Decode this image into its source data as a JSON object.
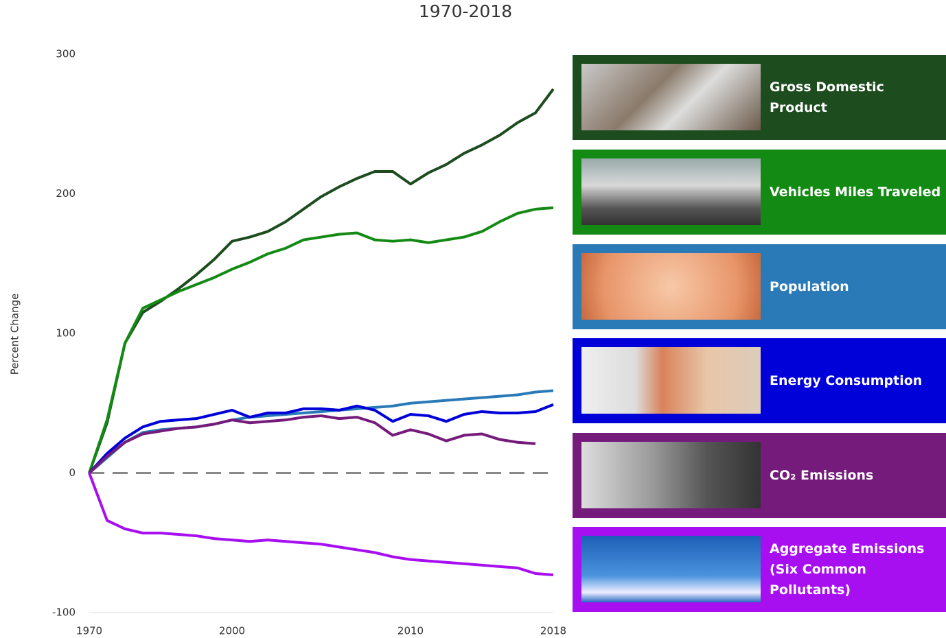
{
  "chart_data": {
    "type": "line",
    "title": "1970-2018",
    "y_label": "Percent Change",
    "categories": [
      "1970",
      null,
      null,
      null,
      null,
      null,
      null,
      null,
      "2000",
      null,
      null,
      null,
      null,
      null,
      null,
      null,
      null,
      null,
      "2010",
      null,
      null,
      null,
      null,
      null,
      null,
      null,
      "2018"
    ],
    "ylim": [
      -100,
      300
    ],
    "yticks": [
      -100,
      0,
      100,
      200,
      300
    ],
    "zero_line": true,
    "series": [
      {
        "name": "Gross Domestic Product",
        "color": "#1d4d1f",
        "values": [
          0,
          36,
          93,
          115,
          123,
          132,
          142,
          153,
          166,
          169,
          173,
          180,
          189,
          198,
          205,
          211,
          216,
          216,
          207,
          215,
          221,
          229,
          235,
          242,
          251,
          258,
          275
        ]
      },
      {
        "name": "Vehicles Miles Traveled",
        "color": "#138a14",
        "values": [
          0,
          38,
          93,
          118,
          124,
          130,
          135,
          140,
          146,
          151,
          157,
          161,
          167,
          169,
          171,
          172,
          167,
          166,
          167,
          165,
          167,
          169,
          173,
          180,
          186,
          189,
          190
        ]
      },
      {
        "name": "Population",
        "color": "#2a7ab8",
        "values": [
          0,
          11,
          22,
          29,
          31,
          32,
          33,
          35,
          38,
          40,
          41,
          42,
          43,
          44,
          45,
          46,
          47,
          48,
          50,
          51,
          52,
          53,
          54,
          55,
          56,
          58,
          59
        ]
      },
      {
        "name": "Energy Consumption",
        "color": "#0000d9",
        "values": [
          0,
          14,
          25,
          33,
          37,
          38,
          39,
          42,
          45,
          40,
          43,
          43,
          46,
          46,
          45,
          48,
          45,
          37,
          42,
          41,
          37,
          42,
          44,
          43,
          43,
          44,
          49
        ]
      },
      {
        "name": "CO₂ Emissions",
        "color": "#741b7c",
        "values": [
          0,
          12,
          22,
          28,
          30,
          32,
          33,
          35,
          38,
          36,
          37,
          38,
          40,
          41,
          39,
          40,
          36,
          27,
          31,
          28,
          23,
          27,
          28,
          24,
          22,
          21,
          null
        ]
      },
      {
        "name": "Aggregate Emissions\n(Six Common Pollutants)",
        "color": "#a70ff0",
        "values": [
          0,
          -34,
          -40,
          -43,
          -43,
          -44,
          -45,
          -47,
          -48,
          -49,
          -48,
          -49,
          -50,
          -51,
          -53,
          -55,
          -57,
          -60,
          -62,
          -63,
          -64,
          -65,
          -66,
          -67,
          -68,
          -72,
          -73
        ]
      }
    ]
  }
}
